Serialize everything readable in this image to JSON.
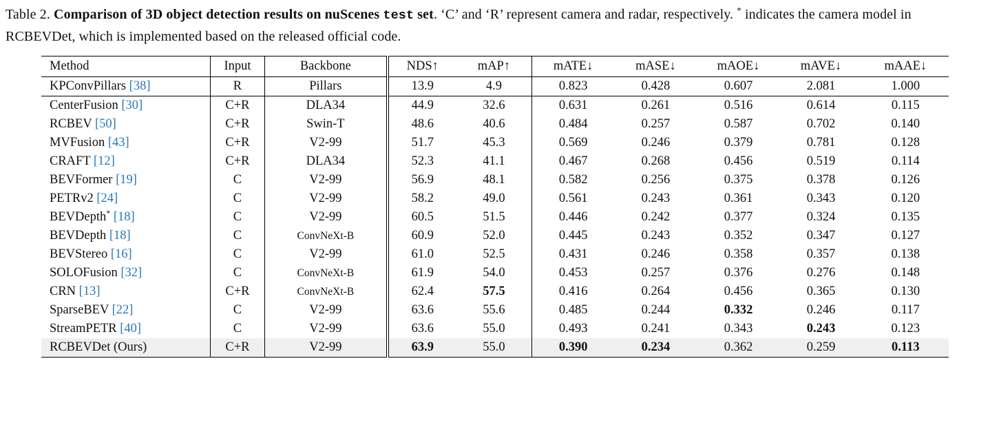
{
  "colors": {
    "citation": "#2878B8",
    "highlight_row": "#efefef",
    "rule": "#000000"
  },
  "caption": {
    "label": "Table 2. ",
    "bold_1": "Comparison of 3D object detection results on nuScenes ",
    "bold_mono": "test",
    "bold_2": " set",
    "normal_1": ". ‘C’ and ‘R’ represent camera and radar, respectively. ",
    "star": "*",
    "normal_2": " indicates the camera model in RCBEVDet, which is implemented based on the released official code."
  },
  "table": {
    "headers": [
      "Method",
      "Input",
      "Backbone",
      "NDS↑",
      "mAP↑",
      "mATE↓",
      "mASE↓",
      "mAOE↓",
      "mAVE↓",
      "mAAE↓"
    ],
    "rows": [
      {
        "method": "KPConvPillars",
        "cite": "[38]",
        "input": "R",
        "backbone": "Pillars",
        "values": [
          "13.9",
          "4.9",
          "0.823",
          "0.428",
          "0.607",
          "2.081",
          "1.000"
        ],
        "bold": [],
        "highlight": false,
        "separator_below": true
      },
      {
        "method": "CenterFusion",
        "cite": "[30]",
        "input": "C+R",
        "backbone": "DLA34",
        "values": [
          "44.9",
          "32.6",
          "0.631",
          "0.261",
          "0.516",
          "0.614",
          "0.115"
        ],
        "bold": [],
        "highlight": false
      },
      {
        "method": "RCBEV",
        "cite": "[50]",
        "input": "C+R",
        "backbone": "Swin-T",
        "values": [
          "48.6",
          "40.6",
          "0.484",
          "0.257",
          "0.587",
          "0.702",
          "0.140"
        ],
        "bold": [],
        "highlight": false
      },
      {
        "method": "MVFusion",
        "cite": "[43]",
        "input": "C+R",
        "backbone": "V2-99",
        "values": [
          "51.7",
          "45.3",
          "0.569",
          "0.246",
          "0.379",
          "0.781",
          "0.128"
        ],
        "bold": [],
        "highlight": false
      },
      {
        "method": "CRAFT",
        "cite": "[12]",
        "input": "C+R",
        "backbone": "DLA34",
        "values": [
          "52.3",
          "41.1",
          "0.467",
          "0.268",
          "0.456",
          "0.519",
          "0.114"
        ],
        "bold": [],
        "highlight": false
      },
      {
        "method": "BEVFormer",
        "cite": "[19]",
        "input": "C",
        "backbone": "V2-99",
        "values": [
          "56.9",
          "48.1",
          "0.582",
          "0.256",
          "0.375",
          "0.378",
          "0.126"
        ],
        "bold": [],
        "highlight": false
      },
      {
        "method": "PETRv2",
        "cite": "[24]",
        "input": "C",
        "backbone": "V2-99",
        "values": [
          "58.2",
          "49.0",
          "0.561",
          "0.243",
          "0.361",
          "0.343",
          "0.120"
        ],
        "bold": [],
        "highlight": false
      },
      {
        "method": "BEVDepth",
        "sup": "*",
        "cite": "[18]",
        "input": "C",
        "backbone": "V2-99",
        "values": [
          "60.5",
          "51.5",
          "0.446",
          "0.242",
          "0.377",
          "0.324",
          "0.135"
        ],
        "bold": [],
        "highlight": false
      },
      {
        "method": "BEVDepth",
        "cite": "[18]",
        "input": "C",
        "backbone": "ConvNeXt-B",
        "values": [
          "60.9",
          "52.0",
          "0.445",
          "0.243",
          "0.352",
          "0.347",
          "0.127"
        ],
        "bold": [],
        "highlight": false
      },
      {
        "method": "BEVStereo",
        "cite": "[16]",
        "input": "C",
        "backbone": "V2-99",
        "values": [
          "61.0",
          "52.5",
          "0.431",
          "0.246",
          "0.358",
          "0.357",
          "0.138"
        ],
        "bold": [],
        "highlight": false
      },
      {
        "method": "SOLOFusion",
        "cite": "[32]",
        "input": "C",
        "backbone": "ConvNeXt-B",
        "values": [
          "61.9",
          "54.0",
          "0.453",
          "0.257",
          "0.376",
          "0.276",
          "0.148"
        ],
        "bold": [],
        "highlight": false
      },
      {
        "method": "CRN",
        "cite": "[13]",
        "input": "C+R",
        "backbone": "ConvNeXt-B",
        "values": [
          "62.4",
          "57.5",
          "0.416",
          "0.264",
          "0.456",
          "0.365",
          "0.130"
        ],
        "bold": [
          1
        ],
        "highlight": false
      },
      {
        "method": "SparseBEV",
        "cite": "[22]",
        "input": "C",
        "backbone": "V2-99",
        "values": [
          "63.6",
          "55.6",
          "0.485",
          "0.244",
          "0.332",
          "0.246",
          "0.117"
        ],
        "bold": [
          4
        ],
        "highlight": false
      },
      {
        "method": "StreamPETR",
        "cite": "[40]",
        "input": "C",
        "backbone": "V2-99",
        "values": [
          "63.6",
          "55.0",
          "0.493",
          "0.241",
          "0.343",
          "0.243",
          "0.123"
        ],
        "bold": [
          5
        ],
        "highlight": false
      },
      {
        "method": "RCBEVDet (Ours)",
        "cite": "",
        "input": "C+R",
        "backbone": "V2-99",
        "values": [
          "63.9",
          "55.0",
          "0.390",
          "0.234",
          "0.362",
          "0.259",
          "0.113"
        ],
        "bold": [
          0,
          2,
          3,
          6
        ],
        "highlight": true
      }
    ]
  }
}
